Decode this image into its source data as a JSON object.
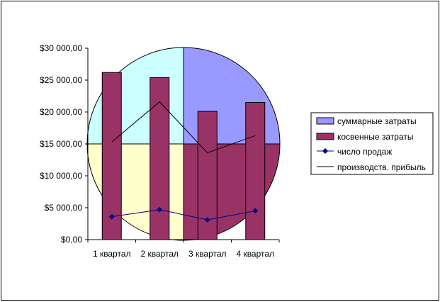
{
  "chart_data": {
    "type": "bar",
    "categories": [
      "1 квартал",
      "2 квартал",
      "3 квартал",
      "4 квартал"
    ],
    "y_ticks": [
      "$0,00",
      "$5 000,00",
      "$10 000,00",
      "$15 000,00",
      "$20 000,00",
      "$25 000,00",
      "$30 000,00"
    ],
    "ylim": [
      0,
      30000
    ],
    "y_step": 5000,
    "legend_position": "right",
    "series": [
      {
        "name": "суммарные затраты",
        "kind": "pie-background",
        "color": "#9999ff",
        "colors": [
          "#9999ff",
          "#993366",
          "#ffffcc",
          "#ccffff"
        ],
        "values": [
          25,
          25,
          25,
          25
        ]
      },
      {
        "name": "косвенные затраты",
        "kind": "bar",
        "color": "#993366",
        "values": [
          26200,
          25400,
          20100,
          21500
        ]
      },
      {
        "name": "число продаж",
        "kind": "line-marker",
        "color": "#000080",
        "values": [
          3600,
          4700,
          3100,
          4500
        ]
      },
      {
        "name": "производств. прибыль",
        "kind": "line",
        "color": "#000000",
        "values": [
          15300,
          21600,
          13600,
          16300
        ]
      }
    ],
    "grid": false
  }
}
